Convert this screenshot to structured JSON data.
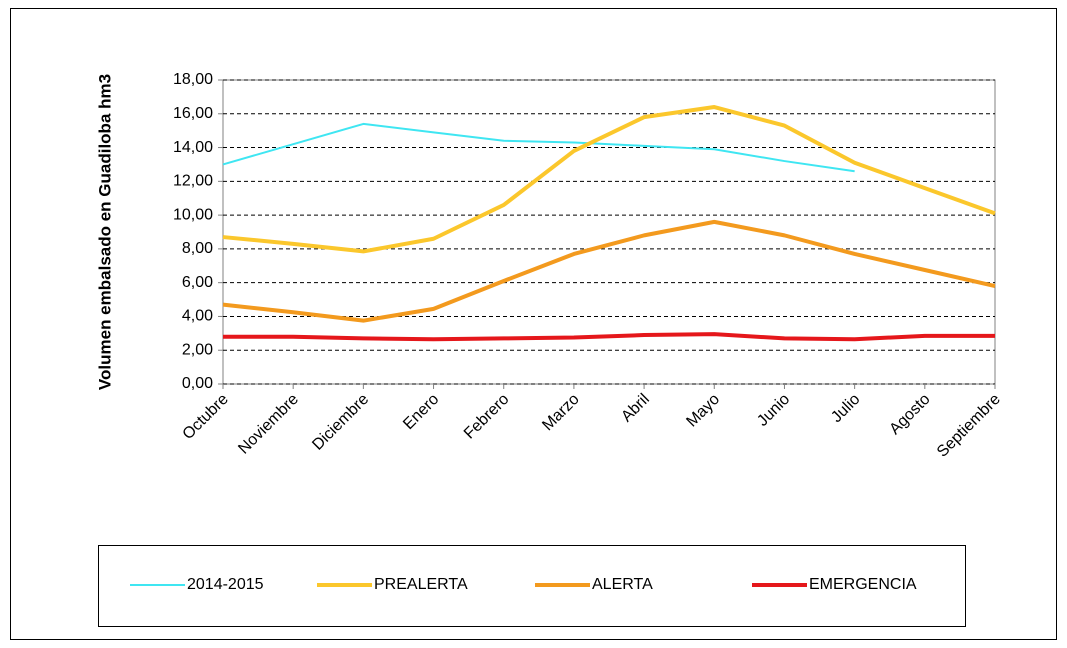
{
  "chart_data": {
    "type": "line",
    "y_label": "Volumen embalsado en Guadiloba hm3",
    "categories": [
      "Octubre",
      "Noviembre",
      "Diciembre",
      "Enero",
      "Febrero",
      "Marzo",
      "Abril",
      "Mayo",
      "Junio",
      "Julio",
      "Agosto",
      "Septiembre"
    ],
    "series": [
      {
        "name": "2014-2015",
        "color": "#3fe6f2",
        "values": [
          13.0,
          14.2,
          15.4,
          14.9,
          14.4,
          14.3,
          14.1,
          13.9,
          13.2,
          12.6,
          null,
          null
        ]
      },
      {
        "name": "PREALERTA",
        "color": "#fbc72c",
        "values": [
          8.7,
          8.3,
          7.85,
          8.6,
          10.6,
          13.8,
          15.8,
          16.4,
          15.3,
          13.1,
          11.6,
          10.1
        ]
      },
      {
        "name": "ALERTA",
        "color": "#f39a1e",
        "values": [
          4.7,
          4.25,
          3.75,
          4.45,
          6.1,
          7.7,
          8.8,
          9.6,
          8.8,
          7.7,
          6.75,
          5.8
        ]
      },
      {
        "name": "EMERGENCIA",
        "color": "#e5171b",
        "values": [
          2.8,
          2.8,
          2.7,
          2.65,
          2.7,
          2.75,
          2.9,
          2.95,
          2.7,
          2.65,
          2.85,
          2.85
        ]
      }
    ],
    "ylim": [
      0,
      18
    ],
    "yticks": [
      {
        "value": 0,
        "label": "0,00"
      },
      {
        "value": 2,
        "label": "2,00"
      },
      {
        "value": 4,
        "label": "4,00"
      },
      {
        "value": 6,
        "label": "6,00"
      },
      {
        "value": 8,
        "label": "8,00"
      },
      {
        "value": 10,
        "label": "10,00"
      },
      {
        "value": 12,
        "label": "12,00"
      },
      {
        "value": 14,
        "label": "14,00"
      },
      {
        "value": 16,
        "label": "16,00"
      },
      {
        "value": 18,
        "label": "18,00"
      }
    ],
    "grid": true
  }
}
